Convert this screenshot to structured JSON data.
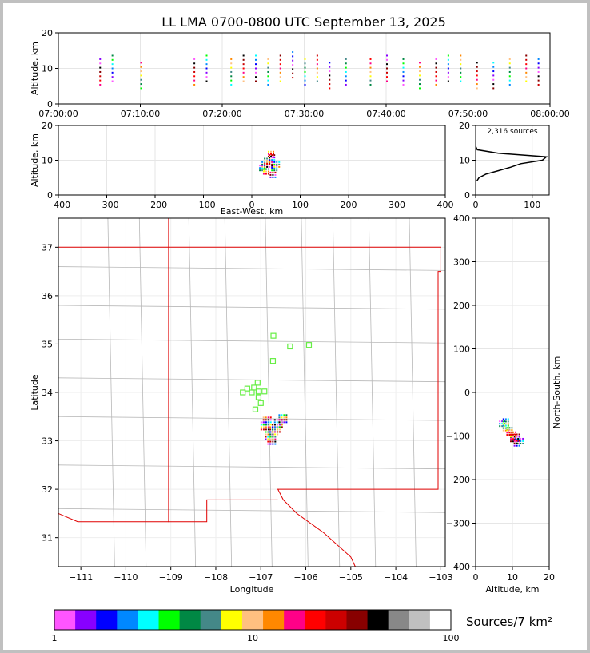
{
  "title": "LL LMA 0700-0800 UTC September 13, 2025",
  "colorbar": {
    "label": "Sources/7 km²",
    "ticks": [
      "1",
      "10",
      "100"
    ],
    "colors": [
      "#ff55ff",
      "#8800ff",
      "#0000ff",
      "#0088ff",
      "#00ffff",
      "#00ff00",
      "#008844",
      "#448888",
      "#ffff00",
      "#ffc080",
      "#ff8800",
      "#ff0088",
      "#ff0000",
      "#cc0000",
      "#880000",
      "#000000",
      "#888888",
      "#c0c0c0",
      "#ffffff"
    ]
  },
  "chart_data": [
    {
      "id": "time-altitude",
      "type": "scatter",
      "ylabel": "Altitude, km",
      "xlim": [
        "07:00:00",
        "08:00:00"
      ],
      "ylim": [
        0,
        20
      ],
      "xticks": [
        "07:00:00",
        "07:10:00",
        "07:20:00",
        "07:30:00",
        "07:40:00",
        "07:50:00",
        "08:00:00"
      ],
      "yticks": [
        "0",
        "10",
        "20"
      ],
      "x_minutes": [
        5,
        6.5,
        10,
        16.5,
        18,
        21,
        22.5,
        24,
        25.5,
        27,
        28.5,
        30,
        31.5,
        33,
        35,
        38,
        40,
        42,
        44,
        46,
        47.5,
        49,
        51,
        53,
        55,
        57,
        58.5
      ],
      "altitude_km": [
        9,
        10,
        8,
        9,
        10,
        9,
        10,
        10,
        9,
        10,
        11,
        9,
        10,
        8,
        9,
        9,
        10,
        9,
        8,
        9,
        10,
        10,
        8,
        8,
        9,
        10,
        9
      ]
    },
    {
      "id": "ew-altitude",
      "type": "scatter",
      "xlabel": "East-West, km",
      "ylabel": "Altitude, km",
      "xlim": [
        -400,
        400
      ],
      "ylim": [
        0,
        20
      ],
      "xticks": [
        "−400",
        "−300",
        "−200",
        "−100",
        "0",
        "100",
        "200",
        "300",
        "400"
      ],
      "yticks": [
        "0",
        "10",
        "20"
      ],
      "x_km": [
        20,
        25,
        30,
        35,
        40,
        45,
        50,
        28,
        38,
        42
      ],
      "altitude_km": [
        8,
        9,
        10,
        9,
        11,
        8,
        9,
        7,
        12,
        6
      ]
    },
    {
      "id": "altitude-histogram",
      "type": "line",
      "annotation": "2,316 sources",
      "xlim": [
        0,
        130
      ],
      "ylim": [
        0,
        20
      ],
      "xticks": [
        "0",
        "100"
      ],
      "yticks": [
        "0",
        "10",
        "20"
      ],
      "altitude_km": [
        4,
        5,
        6,
        7,
        8,
        9,
        10,
        11,
        12,
        13,
        14
      ],
      "count": [
        2,
        6,
        18,
        40,
        62,
        80,
        118,
        125,
        40,
        3,
        0
      ]
    },
    {
      "id": "plan-view",
      "type": "scatter",
      "xlabel": "Longitude",
      "ylabel": "Latitude",
      "xlim": [
        -111.5,
        -102.9
      ],
      "ylim": [
        30.4,
        37.6
      ],
      "xticks": [
        "−111",
        "−110",
        "−109",
        "−108",
        "−107",
        "−106",
        "−105",
        "−104",
        "−103"
      ],
      "yticks": [
        "31",
        "32",
        "33",
        "34",
        "35",
        "36",
        "37"
      ],
      "source_lon": [
        -106.9,
        -106.8,
        -106.7,
        -106.6,
        -106.75,
        -106.85,
        -106.65,
        -106.5
      ],
      "source_lat": [
        33.3,
        33.1,
        33.2,
        33.35,
        33.0,
        33.4,
        33.25,
        33.45
      ],
      "station_lon": [
        -106.72,
        -106.35,
        -105.93,
        -106.73,
        -107.07,
        -107.15,
        -107.3,
        -107.4,
        -107.2,
        -107.05,
        -106.92,
        -107.12,
        -107.0,
        -107.05
      ],
      "station_lat": [
        35.17,
        34.95,
        34.98,
        34.65,
        34.2,
        34.1,
        34.08,
        34.0,
        34.0,
        33.9,
        34.02,
        33.65,
        33.78,
        34.02
      ]
    },
    {
      "id": "altitude-ns",
      "type": "scatter",
      "xlabel": "Altitude, km",
      "ylabel": "North-South, km",
      "xlim": [
        0,
        20
      ],
      "ylim": [
        -400,
        400
      ],
      "xticks": [
        "0",
        "10",
        "20"
      ],
      "yticks": [
        "−400",
        "−300",
        "−200",
        "−100",
        "0",
        "100",
        "200",
        "300",
        "400"
      ],
      "altitude_km": [
        7,
        8,
        9,
        10,
        11,
        12,
        8,
        9,
        10,
        11
      ],
      "ns_km": [
        -70,
        -80,
        -90,
        -95,
        -100,
        -110,
        -65,
        -85,
        -105,
        -115
      ]
    }
  ]
}
